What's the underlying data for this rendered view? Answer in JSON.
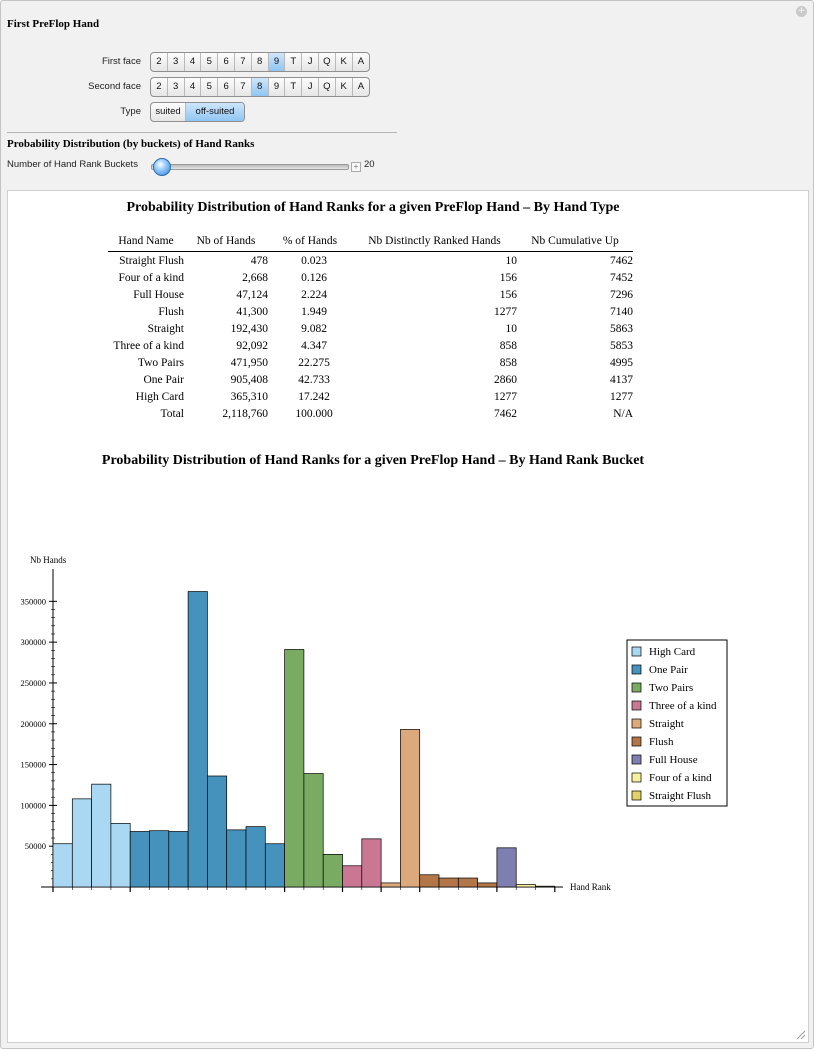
{
  "control": {
    "title": "First PreFlop Hand",
    "first_face_label": "First face",
    "second_face_label": "Second face",
    "type_label": "Type",
    "faces": [
      "2",
      "3",
      "4",
      "5",
      "6",
      "7",
      "8",
      "9",
      "T",
      "J",
      "Q",
      "K",
      "A"
    ],
    "first_face_selected": "9",
    "second_face_selected": "8",
    "types": [
      "suited",
      "off-suited"
    ],
    "type_selected": "off-suited",
    "distribution_heading": "Probability Distribution (by buckets) of Hand Ranks",
    "buckets_label": "Number of Hand Rank Buckets",
    "buckets_value": "20",
    "buckets_fraction": 0.08
  },
  "table": {
    "title": "Probability Distribution of Hand Ranks for a given PreFlop Hand – By Hand Type",
    "columns": [
      "Hand Name",
      "Nb of Hands",
      "% of Hands",
      "Nb Distinctly Ranked Hands",
      "Nb Cumulative Up"
    ],
    "rows": [
      [
        "Straight Flush",
        "478",
        "0.023",
        "10",
        "7462"
      ],
      [
        "Four of a kind",
        "2,668",
        "0.126",
        "156",
        "7452"
      ],
      [
        "Full House",
        "47,124",
        "2.224",
        "156",
        "7296"
      ],
      [
        "Flush",
        "41,300",
        "1.949",
        "1277",
        "7140"
      ],
      [
        "Straight",
        "192,430",
        "9.082",
        "10",
        "5863"
      ],
      [
        "Three of a kind",
        "92,092",
        "4.347",
        "858",
        "5853"
      ],
      [
        "Two Pairs",
        "471,950",
        "22.275",
        "858",
        "4995"
      ],
      [
        "One Pair",
        "905,408",
        "42.733",
        "2860",
        "4137"
      ],
      [
        "High Card",
        "365,310",
        "17.242",
        "1277",
        "1277"
      ],
      [
        "Total",
        "2,118,760",
        "100.000",
        "7462",
        "N/A"
      ]
    ]
  },
  "chart_data": {
    "type": "bar",
    "title": "Probability Distribution of Hand Ranks for a given PreFlop Hand – By Hand Rank Bucket",
    "xlabel": "Hand Rank",
    "ylabel": "Nb Hands",
    "ylim": [
      0,
      370000
    ],
    "yticks": [
      50000,
      100000,
      150000,
      200000,
      250000,
      300000,
      350000
    ],
    "grid": false,
    "legend_position": "right",
    "series": [
      {
        "name": "High Card",
        "color": "#aad8f2",
        "values": [
          53000,
          108000,
          126000,
          78000
        ]
      },
      {
        "name": "One Pair",
        "color": "#4592bd",
        "values": [
          68000,
          69000,
          68000,
          362000,
          136000,
          70000,
          74000,
          53000
        ]
      },
      {
        "name": "Two Pairs",
        "color": "#7aab63",
        "values": [
          291000,
          139000,
          40000
        ]
      },
      {
        "name": "Three of a kind",
        "color": "#c97792",
        "values": [
          26000,
          59000
        ]
      },
      {
        "name": "Straight",
        "color": "#dca97c",
        "values": [
          5000,
          193000
        ]
      },
      {
        "name": "Flush",
        "color": "#b27648",
        "values": [
          15000,
          11000,
          11000,
          5000
        ]
      },
      {
        "name": "Full House",
        "color": "#7e7fb0",
        "values": [
          48000
        ]
      },
      {
        "name": "Four of a kind",
        "color": "#f6ef9e",
        "values": [
          3000
        ]
      },
      {
        "name": "Straight Flush",
        "color": "#e0d268",
        "values": [
          1000
        ]
      }
    ]
  }
}
